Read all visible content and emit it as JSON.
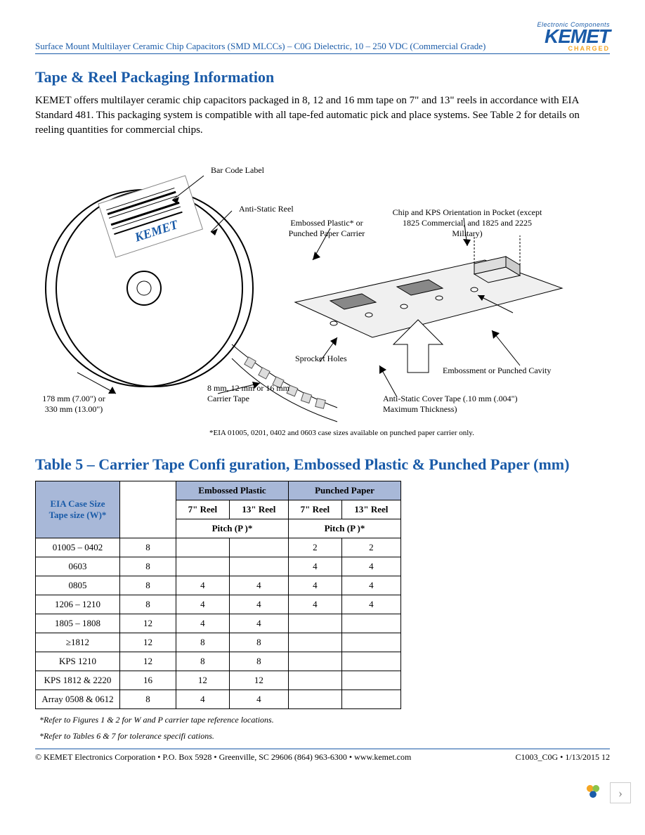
{
  "header": {
    "doc_title": "Surface Mount Multilayer Ceramic Chip Capacitors (SMD MLCCs) – C0G Dielectric, 10 – 250 VDC (Commercial Grade)",
    "logo_top": "Electronic Components",
    "logo_main": "KEMET",
    "logo_sub": "CHARGED"
  },
  "section1": {
    "heading": "Tape & Reel Packaging Information",
    "body": "KEMET offers multilayer ceramic chip capacitors packaged in 8, 12 and 16 mm tape on 7\" and 13\" reels in accordance with EIA Standard 481. This packaging system is compatible with all tape-fed automatic pick and place systems. See Table 2 for details on reeling quantities for commercial chips."
  },
  "diagram": {
    "label_barcode": "Bar Code Label",
    "label_antistatic_reel": "Anti-Static Reel",
    "label_embossed_carrier": "Embossed Plastic* or Punched Paper Carrier",
    "label_chip_orientation": "Chip and KPS Orientation in Pocket (except 1825 Commercial, and 1825 and 2225 Military)",
    "label_sprocket": "Sprocket Holes",
    "label_embossment": "Embossment or Punched Cavity",
    "label_cover_tape": "Anti-Static Cover Tape (.10 mm (.004\") Maximum Thickness)",
    "label_carrier_tape": "8 mm, 12 mm or 16 mm Carrier Tape",
    "label_reel_size": "178 mm (7.00\") or 330 mm (13.00\")",
    "label_kemet_on_reel": "KEMET",
    "footnote": "*EIA 01005, 0201, 0402 and 0603 case sizes available on punched paper carrier only."
  },
  "table5": {
    "heading": "Table 5 – Carrier Tape Confi guration, Embossed Plastic & Punched Paper (mm)",
    "col_case": "EIA Case Size",
    "col_tape": "Tape size (W)*",
    "grp_embossed": "Embossed Plastic",
    "grp_punched": "Punched Paper",
    "col_7reel": "7\" Reel",
    "col_13reel": "13\" Reel",
    "col_pitch": "Pitch (P )*",
    "rows": [
      {
        "case": "01005 – 0402",
        "w": "8",
        "e7": "",
        "e13": "",
        "p7": "2",
        "p13": "2"
      },
      {
        "case": "0603",
        "w": "8",
        "e7": "",
        "e13": "",
        "p7": "4",
        "p13": "4"
      },
      {
        "case": "0805",
        "w": "8",
        "e7": "4",
        "e13": "4",
        "p7": "4",
        "p13": "4"
      },
      {
        "case": "1206 – 1210",
        "w": "8",
        "e7": "4",
        "e13": "4",
        "p7": "4",
        "p13": "4"
      },
      {
        "case": "1805 – 1808",
        "w": "12",
        "e7": "4",
        "e13": "4",
        "p7": "",
        "p13": ""
      },
      {
        "case": "≥1812",
        "w": "12",
        "e7": "8",
        "e13": "8",
        "p7": "",
        "p13": ""
      },
      {
        "case": "KPS 1210",
        "w": "12",
        "e7": "8",
        "e13": "8",
        "p7": "",
        "p13": ""
      },
      {
        "case": "KPS 1812 & 2220",
        "w": "16",
        "e7": "12",
        "e13": "12",
        "p7": "",
        "p13": ""
      },
      {
        "case": "Array 0508 & 0612",
        "w": "8",
        "e7": "4",
        "e13": "4",
        "p7": "",
        "p13": ""
      }
    ],
    "note1": "*Refer to Figures 1 & 2 for W and P carrier tape reference locations.",
    "note2": "*Refer to Tables 6 & 7 for tolerance specifi cations."
  },
  "footer": {
    "left": "© KEMET Electronics Corporation • P.O. Box 5928 • Greenville, SC 29606 (864) 963-6300 • www.kemet.com",
    "right": "C1003_C0G • 1/13/2015 12"
  },
  "colors": {
    "brand_blue": "#1a5ba8",
    "brand_orange": "#f5a623",
    "table_header_bg": "#a8b8d8"
  }
}
